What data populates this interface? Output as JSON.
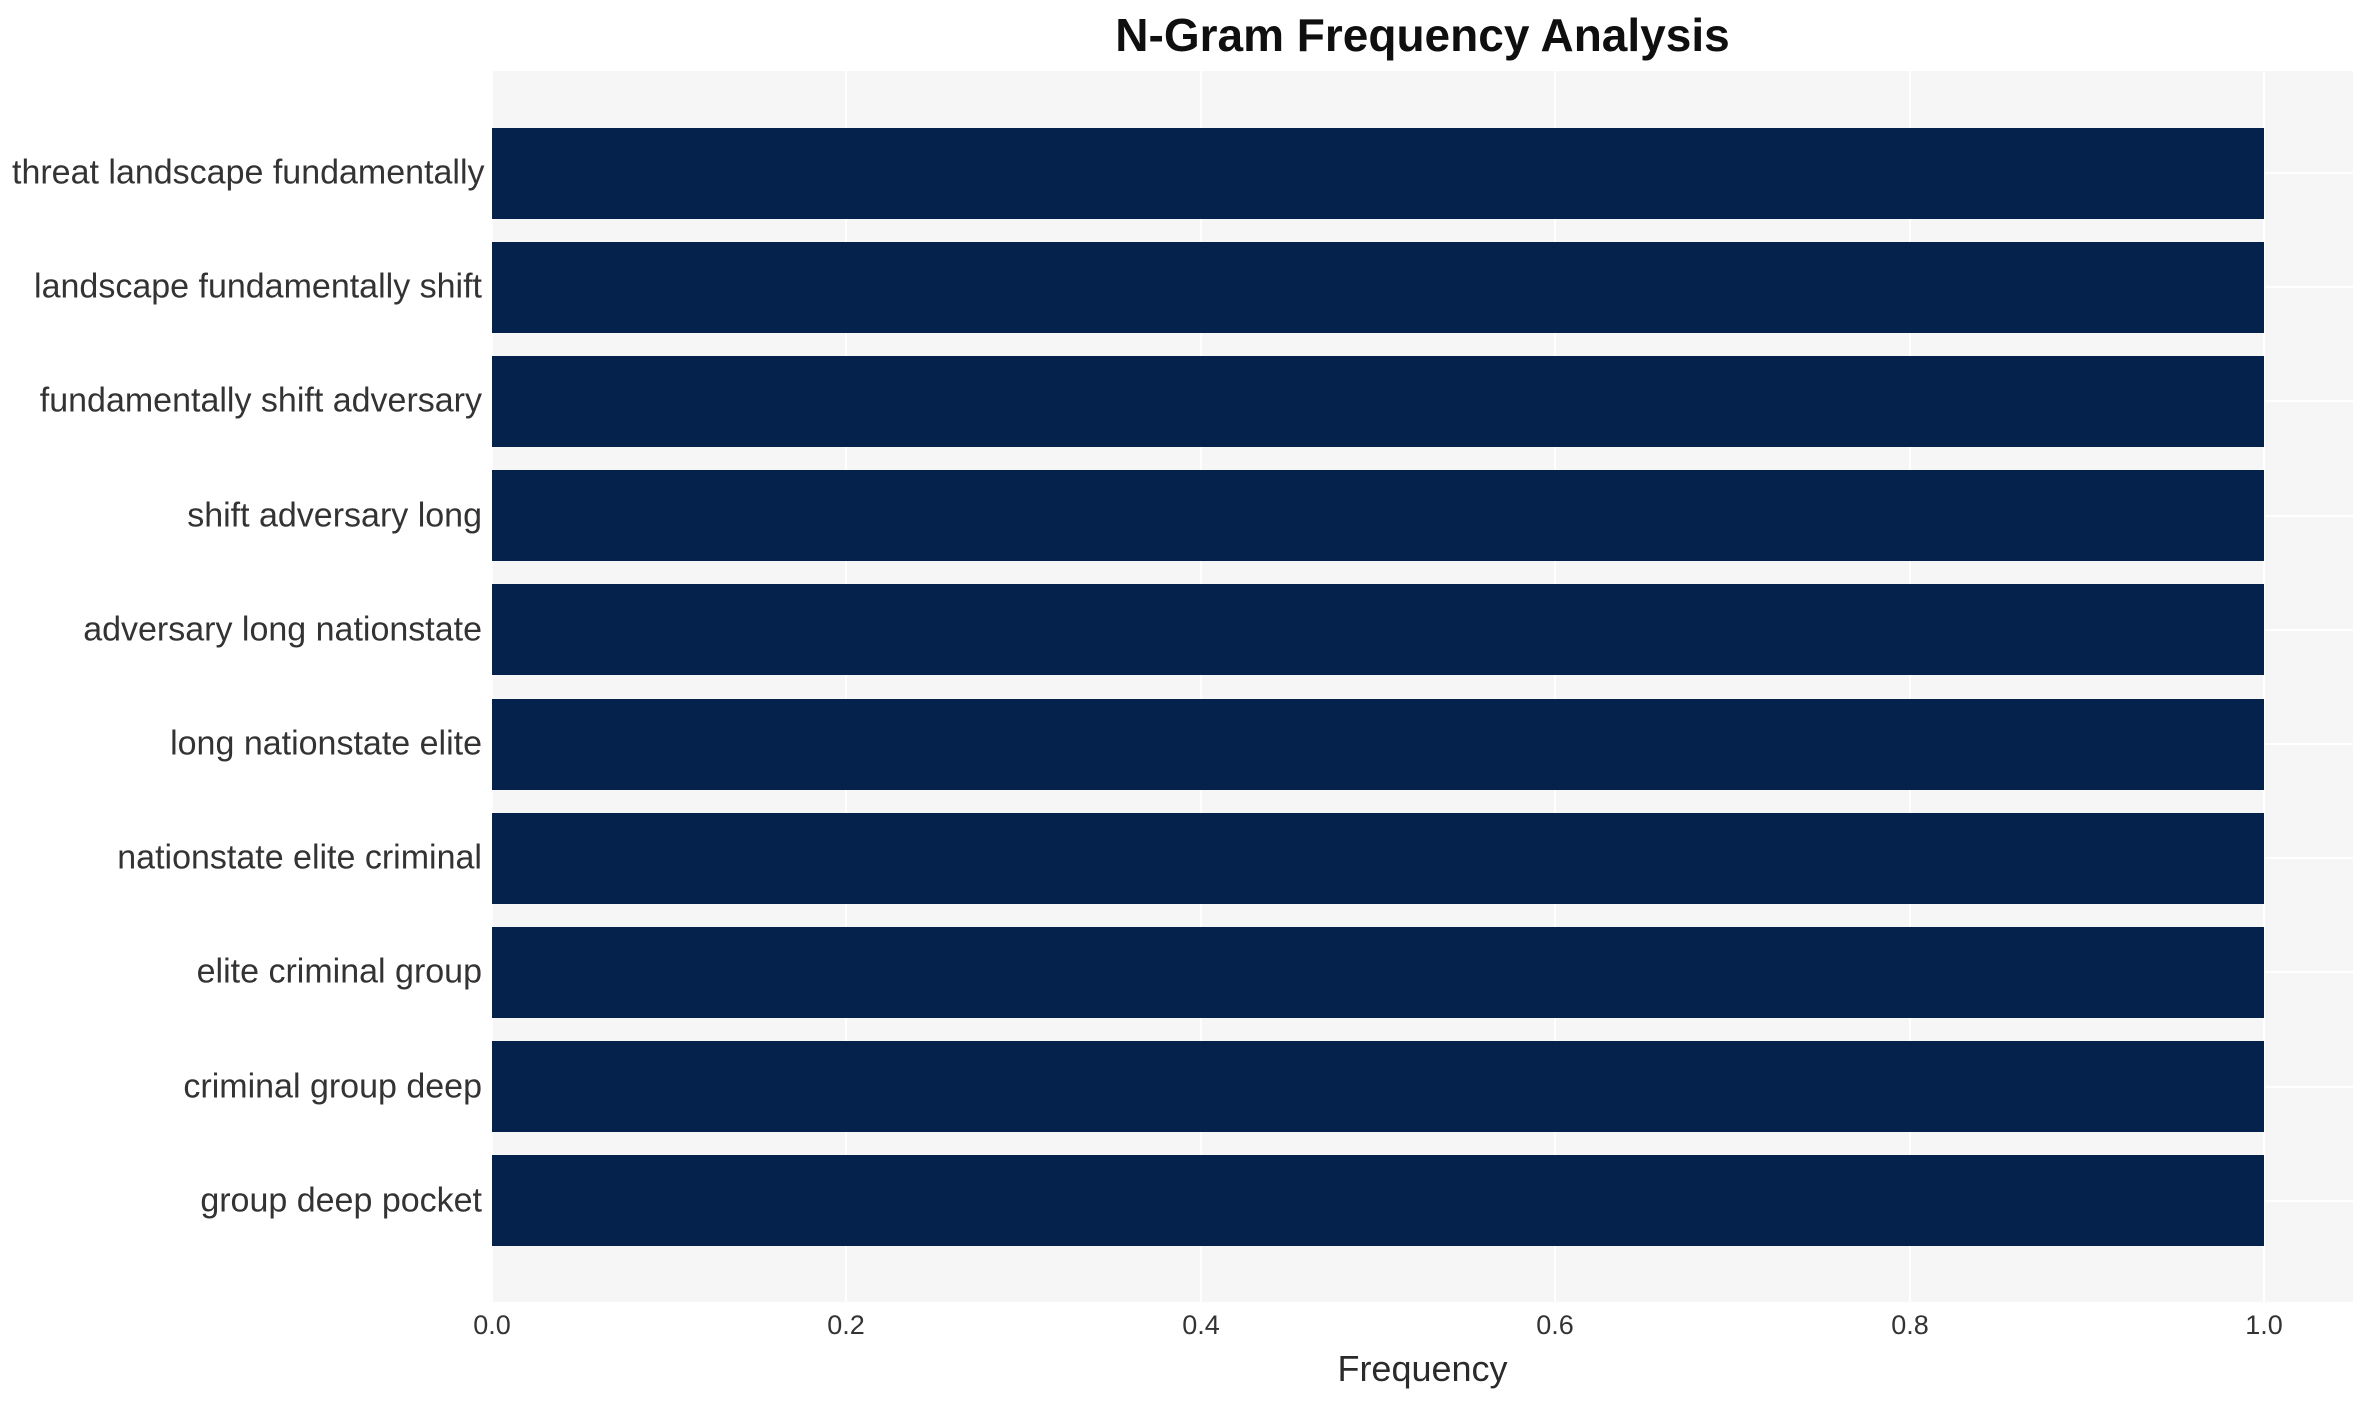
{
  "chart_data": {
    "type": "bar",
    "orientation": "horizontal",
    "title": "N-Gram Frequency Analysis",
    "xlabel": "Frequency",
    "ylabel": "",
    "categories": [
      "threat landscape fundamentally",
      "landscape fundamentally shift",
      "fundamentally shift adversary",
      "shift adversary long",
      "adversary long nationstate",
      "long nationstate elite",
      "nationstate elite criminal",
      "elite criminal group",
      "criminal group deep",
      "group deep pocket"
    ],
    "values": [
      1.0,
      1.0,
      1.0,
      1.0,
      1.0,
      1.0,
      1.0,
      1.0,
      1.0,
      1.0
    ],
    "xticks": [
      "0.0",
      "0.2",
      "0.4",
      "0.6",
      "0.8",
      "1.0"
    ],
    "xtick_values": [
      0.0,
      0.2,
      0.4,
      0.6,
      0.8,
      1.0
    ],
    "xlim": [
      0,
      1.05
    ],
    "grid": true,
    "legend_position": "none",
    "colors": {
      "bar": "#05224C",
      "plot_background": "#f6f6f7",
      "gridline": "#ffffff",
      "title_text": "#0f0f0f",
      "label_text": "#333333"
    }
  }
}
